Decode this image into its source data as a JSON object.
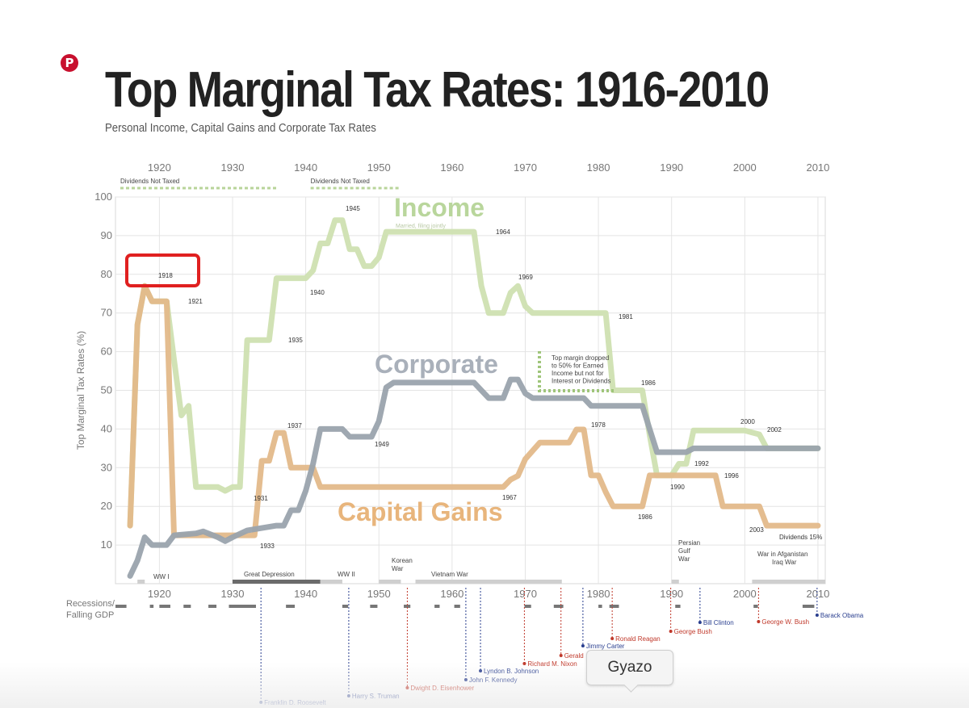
{
  "header": {
    "pin_glyph": "P",
    "title": "Top Marginal Tax Rates: 1916-2010",
    "subtitle": "Personal Income, Capital Gains and Corporate Tax Rates"
  },
  "tooltip": {
    "label": "Gyazo"
  },
  "chart_data": {
    "type": "line",
    "xlim": [
      1914,
      2011
    ],
    "ylim": [
      0,
      100
    ],
    "ylabel": "Top Marginal Tax Rates (%)",
    "x_ticks": [
      "1920",
      "1930",
      "1940",
      "1950",
      "1960",
      "1970",
      "1980",
      "1990",
      "2000",
      "2010"
    ],
    "x_tick_values": [
      1920,
      1930,
      1940,
      1950,
      1960,
      1970,
      1980,
      1990,
      2000,
      2010
    ],
    "y_ticks": [
      10,
      20,
      30,
      40,
      50,
      60,
      70,
      80,
      90,
      100
    ],
    "grid": true,
    "series": [
      {
        "name": "Income",
        "label_sub": "Married, filing jointly",
        "color": "#cfe0b1",
        "points": [
          [
            1916,
            15
          ],
          [
            1917,
            67
          ],
          [
            1918,
            77
          ],
          [
            1919,
            73
          ],
          [
            1921,
            73
          ],
          [
            1922,
            58
          ],
          [
            1923,
            43.5
          ],
          [
            1924,
            46
          ],
          [
            1925,
            25
          ],
          [
            1928,
            25
          ],
          [
            1929,
            24
          ],
          [
            1930,
            25
          ],
          [
            1931,
            25
          ],
          [
            1932,
            63
          ],
          [
            1935,
            63
          ],
          [
            1936,
            79
          ],
          [
            1940,
            79
          ],
          [
            1941,
            81
          ],
          [
            1942,
            88
          ],
          [
            1943,
            88
          ],
          [
            1944,
            94
          ],
          [
            1945,
            94
          ],
          [
            1946,
            86.5
          ],
          [
            1947,
            86.5
          ],
          [
            1948,
            82.13
          ],
          [
            1949,
            82.13
          ],
          [
            1950,
            84.36
          ],
          [
            1951,
            91
          ],
          [
            1963,
            91
          ],
          [
            1964,
            77
          ],
          [
            1965,
            70
          ],
          [
            1967,
            70
          ],
          [
            1968,
            75.25
          ],
          [
            1969,
            77
          ],
          [
            1970,
            71.75
          ],
          [
            1971,
            70
          ],
          [
            1981,
            70
          ],
          [
            1982,
            50
          ],
          [
            1986,
            50
          ],
          [
            1987,
            38.5
          ],
          [
            1988,
            28
          ],
          [
            1990,
            28
          ],
          [
            1991,
            31
          ],
          [
            1992,
            31
          ],
          [
            1993,
            39.6
          ],
          [
            2000,
            39.6
          ],
          [
            2001,
            39.1
          ],
          [
            2002,
            38.6
          ],
          [
            2003,
            35
          ],
          [
            2010,
            35
          ]
        ]
      },
      {
        "name": "Corporate",
        "color": "#9aa3ad",
        "points": [
          [
            1916,
            2
          ],
          [
            1917,
            6
          ],
          [
            1918,
            12
          ],
          [
            1919,
            10
          ],
          [
            1921,
            10
          ],
          [
            1922,
            12.5
          ],
          [
            1925,
            13
          ],
          [
            1926,
            13.5
          ],
          [
            1928,
            12
          ],
          [
            1929,
            11
          ],
          [
            1930,
            12
          ],
          [
            1932,
            13.75
          ],
          [
            1936,
            15
          ],
          [
            1937,
            15
          ],
          [
            1938,
            19
          ],
          [
            1939,
            19
          ],
          [
            1940,
            24
          ],
          [
            1941,
            31
          ],
          [
            1942,
            40
          ],
          [
            1945,
            40
          ],
          [
            1946,
            38
          ],
          [
            1949,
            38
          ],
          [
            1950,
            42
          ],
          [
            1951,
            50.75
          ],
          [
            1952,
            52
          ],
          [
            1963,
            52
          ],
          [
            1964,
            50
          ],
          [
            1965,
            48
          ],
          [
            1967,
            48
          ],
          [
            1968,
            52.8
          ],
          [
            1969,
            52.8
          ],
          [
            1970,
            49.2
          ],
          [
            1971,
            48
          ],
          [
            1978,
            48
          ],
          [
            1979,
            46
          ],
          [
            1986,
            46
          ],
          [
            1987,
            40
          ],
          [
            1988,
            34
          ],
          [
            1992,
            34
          ],
          [
            1993,
            35
          ],
          [
            2010,
            35
          ]
        ]
      },
      {
        "name": "Capital Gains",
        "color": "#e3b98a",
        "points": [
          [
            1916,
            15
          ],
          [
            1917,
            67
          ],
          [
            1918,
            77
          ],
          [
            1919,
            73
          ],
          [
            1921,
            73
          ],
          [
            1922,
            12.5
          ],
          [
            1933,
            12.5
          ],
          [
            1934,
            31.8
          ],
          [
            1935,
            31.8
          ],
          [
            1936,
            39
          ],
          [
            1937,
            39
          ],
          [
            1938,
            30
          ],
          [
            1941,
            30
          ],
          [
            1942,
            25
          ],
          [
            1967,
            25
          ],
          [
            1968,
            26.9
          ],
          [
            1969,
            27.9
          ],
          [
            1970,
            32.21
          ],
          [
            1972,
            36.5
          ],
          [
            1976,
            36.5
          ],
          [
            1977,
            39.875
          ],
          [
            1978,
            39.875
          ],
          [
            1979,
            28
          ],
          [
            1980,
            28
          ],
          [
            1981,
            23.7
          ],
          [
            1982,
            20
          ],
          [
            1986,
            20
          ],
          [
            1987,
            28
          ],
          [
            1996,
            28
          ],
          [
            1997,
            20
          ],
          [
            2002,
            20
          ],
          [
            2003,
            15
          ],
          [
            2010,
            15
          ]
        ]
      }
    ],
    "annotations": [
      "1918",
      "1921",
      "1931",
      "1933",
      "1935",
      "1937",
      "1940",
      "1945",
      "1949",
      "1964",
      "1967",
      "1969",
      "1978",
      "1981",
      "1986",
      "1986",
      "1990",
      "1992",
      "1996",
      "2000",
      "2002",
      "2003",
      "Dividends 15%"
    ],
    "dividend_bars": [
      {
        "label": "Dividends Not Taxed",
        "from": 1914,
        "to": 1936
      },
      {
        "label": "Dividends Not Taxed",
        "from": 1940,
        "to": 1953
      }
    ],
    "dividend_note": "Top margin dropped to 50% for Earned Income but not for Interest or Dividends",
    "events": [
      {
        "label": "WW I",
        "from": 1917,
        "to": 1918
      },
      {
        "label": "Great Depression",
        "from": 1930,
        "to": 1942
      },
      {
        "label": "WW II",
        "from": 1942,
        "to": 1945
      },
      {
        "label": "Korean War",
        "from": 1950,
        "to": 1953
      },
      {
        "label": "Vietnam War",
        "from": 1955,
        "to": 1975
      },
      {
        "label": "Persian Gulf War",
        "from": 1990,
        "to": 1991
      },
      {
        "label": "War in Afganistan Iraq War",
        "from": 2001,
        "to": 2011
      }
    ],
    "recessions_label": "Recessions/ Falling GDP",
    "recessions": [
      [
        1914,
        1915.5
      ],
      [
        1918.7,
        1919.2
      ],
      [
        1920,
        1921.5
      ],
      [
        1923.3,
        1924.3
      ],
      [
        1926.7,
        1927.8
      ],
      [
        1929.5,
        1933.2
      ],
      [
        1937.3,
        1938.5
      ],
      [
        1945,
        1945.8
      ],
      [
        1948.8,
        1949.8
      ],
      [
        1953.4,
        1954.3
      ],
      [
        1957.6,
        1958.3
      ],
      [
        1960.3,
        1961.1
      ],
      [
        1969.9,
        1970.8
      ],
      [
        1973.9,
        1975.2
      ],
      [
        1980,
        1980.5
      ],
      [
        1981.5,
        1982.8
      ],
      [
        1990.5,
        1991.2
      ],
      [
        2001.2,
        2001.8
      ],
      [
        2007.9,
        2009.5
      ]
    ],
    "presidents": [
      {
        "name": "Franklin D. Roosevelt",
        "year": 1933,
        "party": "D"
      },
      {
        "name": "Harry S. Truman",
        "year": 1945,
        "party": "D"
      },
      {
        "name": "Dwight D. Eisenhower",
        "year": 1953,
        "party": "R"
      },
      {
        "name": "John F. Kennedy",
        "year": 1961,
        "party": "D"
      },
      {
        "name": "Lyndon B. Johnson",
        "year": 1963,
        "party": "D"
      },
      {
        "name": "Richard M. Nixon",
        "year": 1969,
        "party": "R"
      },
      {
        "name": "Gerald",
        "year": 1974,
        "party": "R"
      },
      {
        "name": "Jimmy Carter",
        "year": 1977,
        "party": "D"
      },
      {
        "name": "Ronald Reagan",
        "year": 1981,
        "party": "R"
      },
      {
        "name": "George Bush",
        "year": 1989,
        "party": "R"
      },
      {
        "name": "Bill Clinton",
        "year": 1993,
        "party": "D"
      },
      {
        "name": "George W. Bush",
        "year": 2001,
        "party": "R"
      },
      {
        "name": "Barack Obama",
        "year": 2009,
        "party": "D"
      }
    ],
    "highlight": {
      "label": "1918",
      "color": "#e02020"
    },
    "colors": {
      "democrat": "#2a3f8f",
      "republican": "#c0392b",
      "grid": "#e4e4e4",
      "axis_text": "#777777"
    }
  }
}
